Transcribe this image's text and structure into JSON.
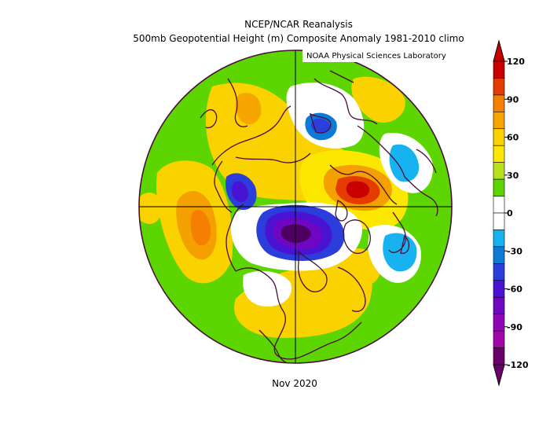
{
  "header": {
    "title_line1": "NCEP/NCAR Reanalysis",
    "title_line2": "500mb Geopotential Height (m) Composite Anomaly 1981-2010 climo",
    "credit": "NOAA Physical Sciences Laboratory"
  },
  "footer": {
    "date": "Nov 2020"
  },
  "colorbar": {
    "units": "m",
    "levels": [
      {
        "label": "120",
        "value": 120
      },
      {
        "label": "90",
        "value": 90
      },
      {
        "label": "60",
        "value": 60
      },
      {
        "label": "30",
        "value": 30
      },
      {
        "label": "0",
        "value": 0
      },
      {
        "label": "-30",
        "value": -30
      },
      {
        "label": "-60",
        "value": -60
      },
      {
        "label": "-90",
        "value": -90
      },
      {
        "label": "-120",
        "value": -120
      }
    ],
    "colors_top_to_bottom": [
      "#c80000",
      "#e33b00",
      "#f47f00",
      "#f7a600",
      "#f9d200",
      "#fbe700",
      "#b6e01e",
      "#5cd500",
      "#ffffff",
      "#ffffff",
      "#17b3f0",
      "#0d7ad7",
      "#2b3ddb",
      "#4a12d2",
      "#6e06c2",
      "#8f06b7",
      "#a106a8",
      "#6b006b"
    ]
  },
  "map": {
    "projection": "polar-stereographic-north",
    "colors": {
      "land_outline": "#4a0d3a",
      "green": "#5cd500",
      "yellow": "#f9d200",
      "lightyellow": "#fbe700",
      "orange": "#f4a000",
      "darkorange": "#f47f00",
      "red": "#e33b00",
      "darkred": "#c80000",
      "lightblue": "#17b3f0",
      "blue": "#0d7ad7",
      "indigo": "#2b3ddb",
      "violet": "#4a12d2",
      "purple": "#6e06c2",
      "darkpurple": "#4d0060"
    }
  }
}
